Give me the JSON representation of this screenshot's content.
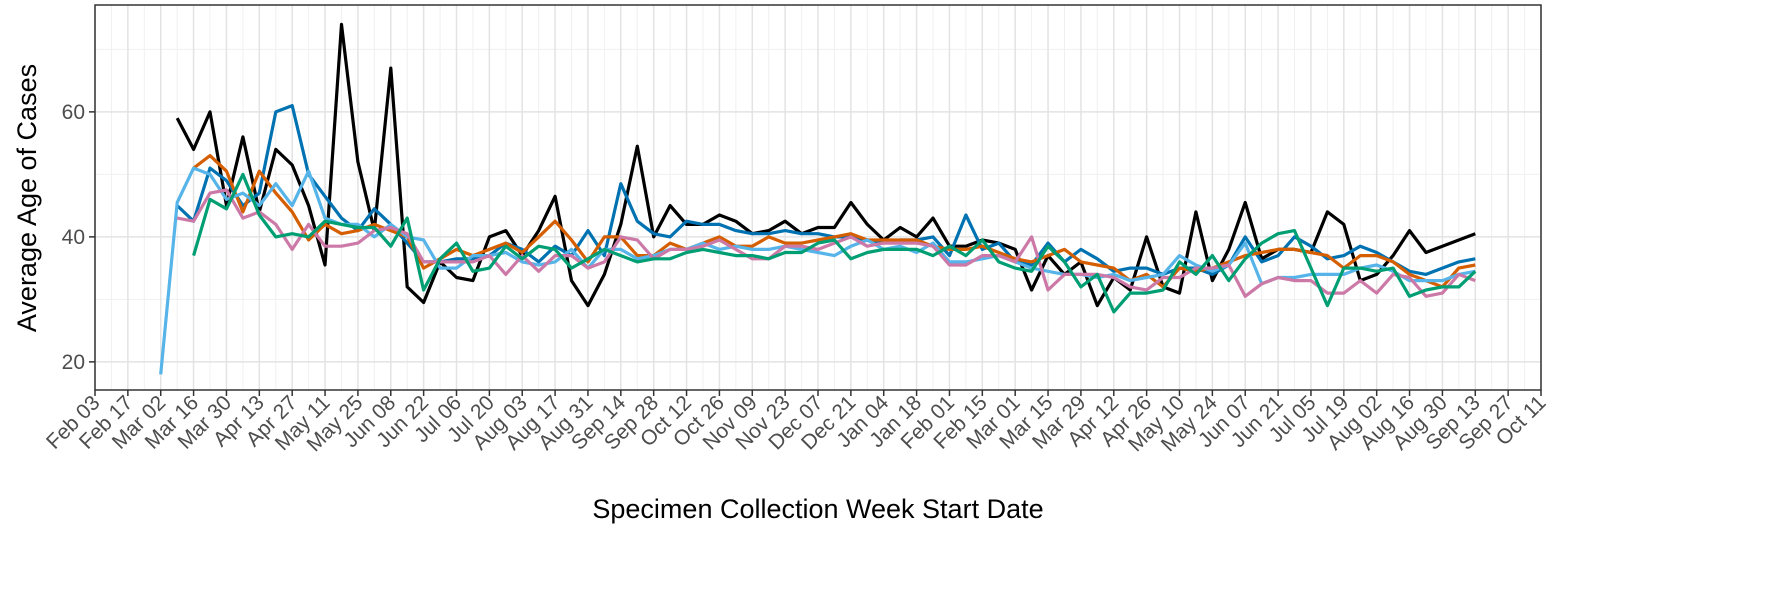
{
  "chart_data": {
    "type": "line",
    "xlabel": "Specimen Collection Week Start Date",
    "ylabel": "Average Age of Cases",
    "categories": [
      "Feb 03",
      null,
      "Feb 17",
      null,
      "Mar 02",
      null,
      "Mar 16",
      null,
      "Mar 30",
      null,
      "Apr 13",
      null,
      "Apr 27",
      null,
      "May 11",
      null,
      "May 25",
      null,
      "Jun 08",
      null,
      "Jun 22",
      null,
      "Jul 06",
      null,
      "Jul 20",
      null,
      "Aug 03",
      null,
      "Aug 17",
      null,
      "Aug 31",
      null,
      "Sep 14",
      null,
      "Sep 28",
      null,
      "Oct 12",
      null,
      "Oct 26",
      null,
      "Nov 09",
      null,
      "Nov 23",
      null,
      "Dec 07",
      null,
      "Dec 21",
      null,
      "Jan 04",
      null,
      "Jan 18",
      null,
      "Feb 01",
      null,
      "Feb 15",
      null,
      "Mar 01",
      null,
      "Mar 15",
      null,
      "Mar 29",
      null,
      "Apr 12",
      null,
      "Apr 26",
      null,
      "May 10",
      null,
      "May 24",
      null,
      "Jun 07",
      null,
      "Jun 21",
      null,
      "Jul 05",
      null,
      "Jul 19",
      null,
      "Aug 02",
      null,
      "Aug 16",
      null,
      "Aug 30",
      null,
      "Sep 13",
      null,
      "Sep 27",
      null,
      "Oct 11"
    ],
    "ylim": [
      15.5,
      77.1
    ],
    "yticks": [
      20,
      40,
      60
    ],
    "grid": true,
    "series": [
      {
        "color": "#000000",
        "values": [
          null,
          null,
          null,
          null,
          null,
          59,
          54,
          60,
          45,
          56,
          44,
          54,
          51.5,
          45,
          35.5,
          74,
          52,
          41,
          67,
          32,
          29.5,
          36,
          33.5,
          33,
          40,
          41,
          37,
          41,
          46.5,
          33,
          29,
          34,
          42,
          54.5,
          40,
          45,
          42,
          42,
          43.5,
          42.5,
          40.5,
          41,
          42.5,
          40.5,
          41.5,
          41.5,
          45.5,
          42,
          39.5,
          41.5,
          40,
          43,
          38.5,
          38.5,
          39.5,
          39,
          38,
          31.5,
          37,
          34,
          36,
          29,
          33.5,
          31.5,
          40,
          32,
          31,
          44,
          33,
          38,
          45.5,
          36.5,
          38,
          38,
          37.5,
          44,
          42,
          33,
          34,
          37,
          41,
          37.5,
          38.5,
          39.5,
          40.5,
          null,
          null,
          null,
          null
        ]
      },
      {
        "color": "#0072B2",
        "values": [
          null,
          null,
          null,
          null,
          null,
          45,
          42.5,
          51,
          49,
          45,
          47,
          60,
          61,
          50,
          46.5,
          43,
          41,
          44.5,
          42,
          39,
          36,
          36,
          36.5,
          36.5,
          37,
          39,
          38,
          36,
          38.5,
          37,
          41,
          37,
          48.5,
          42.5,
          40.5,
          40,
          42.5,
          42,
          42,
          41,
          40.5,
          40.5,
          41,
          40.5,
          40.5,
          40,
          40,
          39.5,
          39,
          39.5,
          39.5,
          40,
          37,
          43.5,
          38,
          39,
          36,
          35.5,
          39,
          36,
          38,
          36.5,
          34.5,
          35,
          35,
          34,
          35,
          35,
          34,
          35.5,
          40,
          36,
          37,
          40,
          38.5,
          36.5,
          37,
          38.5,
          37.5,
          36,
          34.5,
          34,
          35,
          36,
          36.5,
          null,
          null,
          null,
          null
        ]
      },
      {
        "color": "#D55E00",
        "values": [
          null,
          null,
          null,
          null,
          null,
          null,
          51,
          53,
          50.5,
          44,
          50.5,
          47,
          44,
          39.5,
          42,
          40.5,
          41,
          42,
          41,
          40,
          35,
          36.5,
          38,
          37,
          38,
          39,
          37.5,
          40,
          42.5,
          39.5,
          36,
          40,
          40,
          37,
          37,
          39,
          38,
          39,
          40,
          38.5,
          38.5,
          40,
          39,
          39,
          39.5,
          40,
          40.5,
          39.5,
          39.5,
          39.5,
          39.5,
          38.5,
          38,
          38,
          38.5,
          37.5,
          36.5,
          36,
          37,
          38,
          36,
          35.5,
          35,
          33,
          34,
          32,
          35,
          34.5,
          35,
          36,
          37,
          37.5,
          38,
          38,
          37.5,
          37,
          35,
          37,
          37,
          36,
          34,
          33,
          32,
          35,
          35.5,
          null,
          null,
          null,
          null
        ]
      },
      {
        "color": "#56B4E9",
        "values": [
          null,
          null,
          null,
          null,
          18,
          45.5,
          51,
          50,
          46,
          47,
          45,
          48.5,
          45,
          50.5,
          43,
          42,
          42,
          40,
          42,
          40,
          39.5,
          35,
          35,
          37,
          37,
          37.5,
          36,
          35.5,
          36,
          38,
          35,
          38,
          38,
          36.5,
          37,
          38,
          38,
          39,
          38,
          38.5,
          38,
          38,
          38.5,
          38,
          37.5,
          37,
          38.5,
          39.5,
          38,
          38.5,
          37.5,
          39,
          36,
          36,
          36.5,
          37,
          36,
          35,
          34.5,
          34,
          34,
          33.5,
          34,
          33,
          33.5,
          34,
          37,
          35.5,
          34.5,
          35.5,
          39,
          32.5,
          33.5,
          33.5,
          34,
          34,
          34,
          35,
          35.5,
          34.5,
          33,
          33,
          33,
          34,
          34.5,
          null,
          null,
          null,
          null
        ]
      },
      {
        "color": "#CC79A7",
        "values": [
          null,
          null,
          null,
          null,
          null,
          43,
          42.5,
          47,
          47.5,
          43,
          44,
          42,
          38,
          42,
          38.5,
          38.5,
          39,
          41,
          41.5,
          40.5,
          36,
          36,
          36,
          36,
          37,
          34,
          37,
          34.5,
          37,
          37,
          35,
          36,
          40,
          39.5,
          36.5,
          38,
          38,
          38.5,
          39.5,
          38,
          36.5,
          36.5,
          38.5,
          38.5,
          38,
          39,
          40,
          38.5,
          39,
          39,
          39,
          38.5,
          35.5,
          35.5,
          37,
          37,
          36,
          40,
          31.5,
          34,
          34,
          34,
          33.5,
          32,
          31.5,
          33.5,
          33.5,
          35,
          35,
          35.5,
          30.5,
          32.5,
          33.5,
          33,
          33,
          31,
          31,
          33,
          31,
          34,
          33.5,
          30.5,
          31,
          34,
          33,
          null,
          null,
          null,
          null
        ]
      },
      {
        "color": "#009E73",
        "values": [
          null,
          null,
          null,
          null,
          null,
          null,
          37,
          46,
          44.5,
          50,
          43.5,
          40,
          40.5,
          40,
          42.5,
          42,
          41.5,
          41.5,
          38.5,
          43,
          31.5,
          36.5,
          39,
          34.5,
          35,
          38.5,
          36.5,
          38.5,
          38,
          35,
          36.5,
          38,
          37,
          36,
          36.5,
          36.5,
          37.5,
          38,
          37.5,
          37,
          37,
          36.5,
          37.5,
          37.5,
          39,
          39.5,
          36.5,
          37.5,
          38,
          38,
          38,
          37,
          38.5,
          37,
          39.5,
          36,
          35,
          34.5,
          38.5,
          36,
          32,
          34,
          28,
          31,
          31,
          31.5,
          36,
          34,
          37,
          33,
          36.5,
          39,
          40.5,
          41,
          35,
          29,
          35,
          35,
          34.5,
          35,
          30.5,
          31.5,
          32,
          32,
          34.5,
          null,
          null,
          null,
          null
        ]
      }
    ]
  }
}
